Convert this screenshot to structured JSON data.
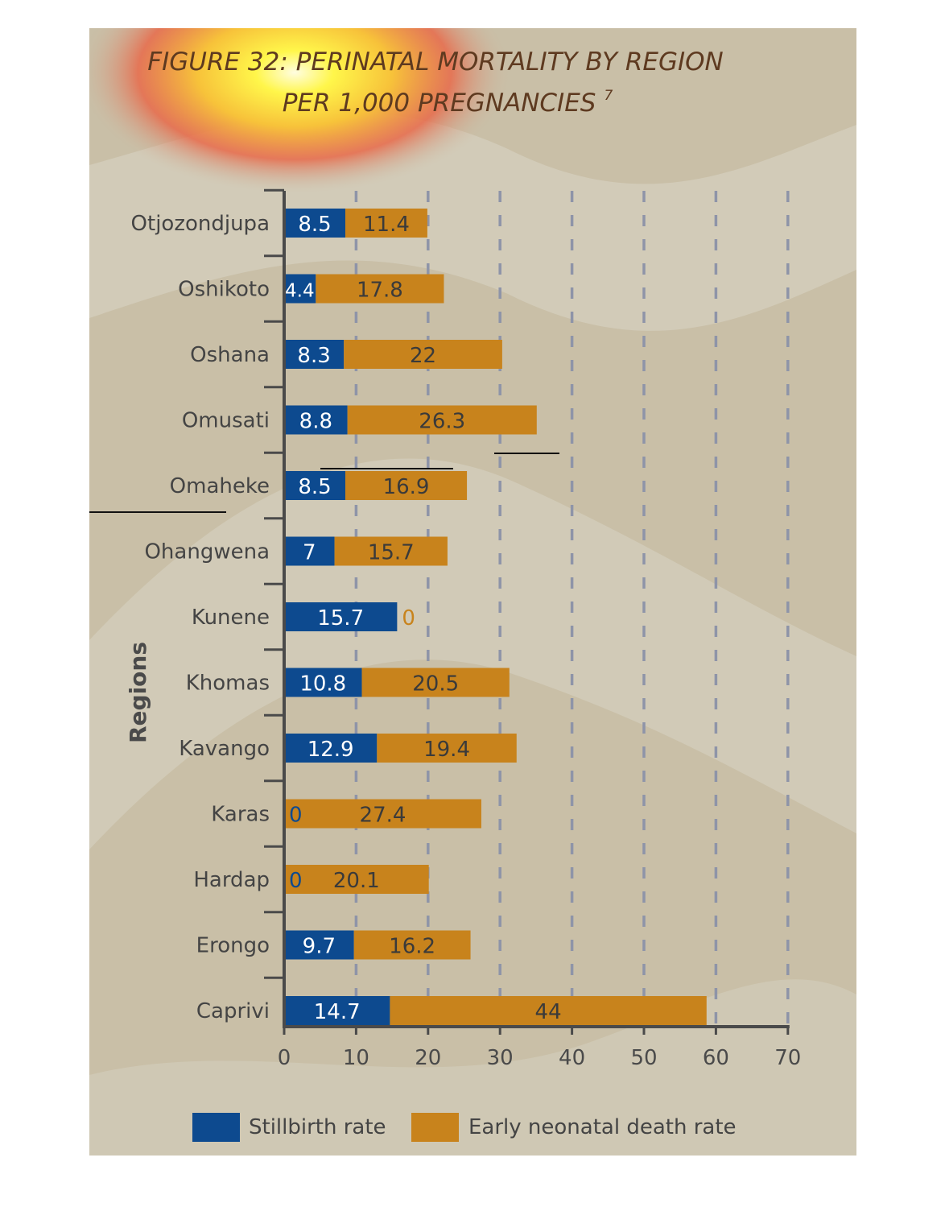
{
  "chart_data": {
    "type": "bar",
    "orientation": "horizontal",
    "stacked": true,
    "title_line1": "FIGURE 32: PERINATAL MORTALITY BY REGION",
    "title_line2": "PER 1,000 PREGNANCIES",
    "title_footnote": "7",
    "ylabel": "Regions",
    "xlabel": "",
    "xlim": [
      0,
      70
    ],
    "x_ticks": [
      "0",
      "10",
      "20",
      "30",
      "40",
      "50",
      "60",
      "70"
    ],
    "grid": "vertical dashed",
    "legend_position": "bottom",
    "categories": [
      "Otjozondjupa",
      "Oshikoto",
      "Oshana",
      "Omusati",
      "Omaheke",
      "Ohangwena",
      "Kunene",
      "Khomas",
      "Kavango",
      "Karas",
      "Hardap",
      "Erongo",
      "Caprivi"
    ],
    "series": [
      {
        "name": "Stillbirth rate",
        "color": "#0d4a8f",
        "values": [
          8.5,
          4.4,
          8.3,
          8.8,
          8.5,
          7,
          15.7,
          10.8,
          12.9,
          0,
          0,
          9.7,
          14.7
        ],
        "labels": [
          "8.5",
          "4.4",
          "8.3",
          "8.8",
          "8.5",
          "7",
          "15.7",
          "10.8",
          "12.9",
          "0",
          "0",
          "9.7",
          "14.7"
        ]
      },
      {
        "name": "Early neonatal death rate",
        "color": "#c8831c",
        "values": [
          11.4,
          17.8,
          22,
          26.3,
          16.9,
          15.7,
          0,
          20.5,
          19.4,
          27.4,
          20.1,
          16.2,
          44
        ],
        "labels": [
          "11.4",
          "17.8",
          "22",
          "26.3",
          "16.9",
          "15.7",
          "0",
          "20.5",
          "19.4",
          "27.4",
          "20.1",
          "16.2",
          "44"
        ]
      }
    ],
    "colors": {
      "panel_background": "#c9bfa7",
      "band_light": "#d6d1c0",
      "title": "#5e3a20",
      "axis": "#4a4a4a",
      "grid": "#8e94a8",
      "category_text": "#444444",
      "bar_label_on_blue": "#ffffff",
      "bar_label_on_orange": "#3a3a3a"
    }
  }
}
